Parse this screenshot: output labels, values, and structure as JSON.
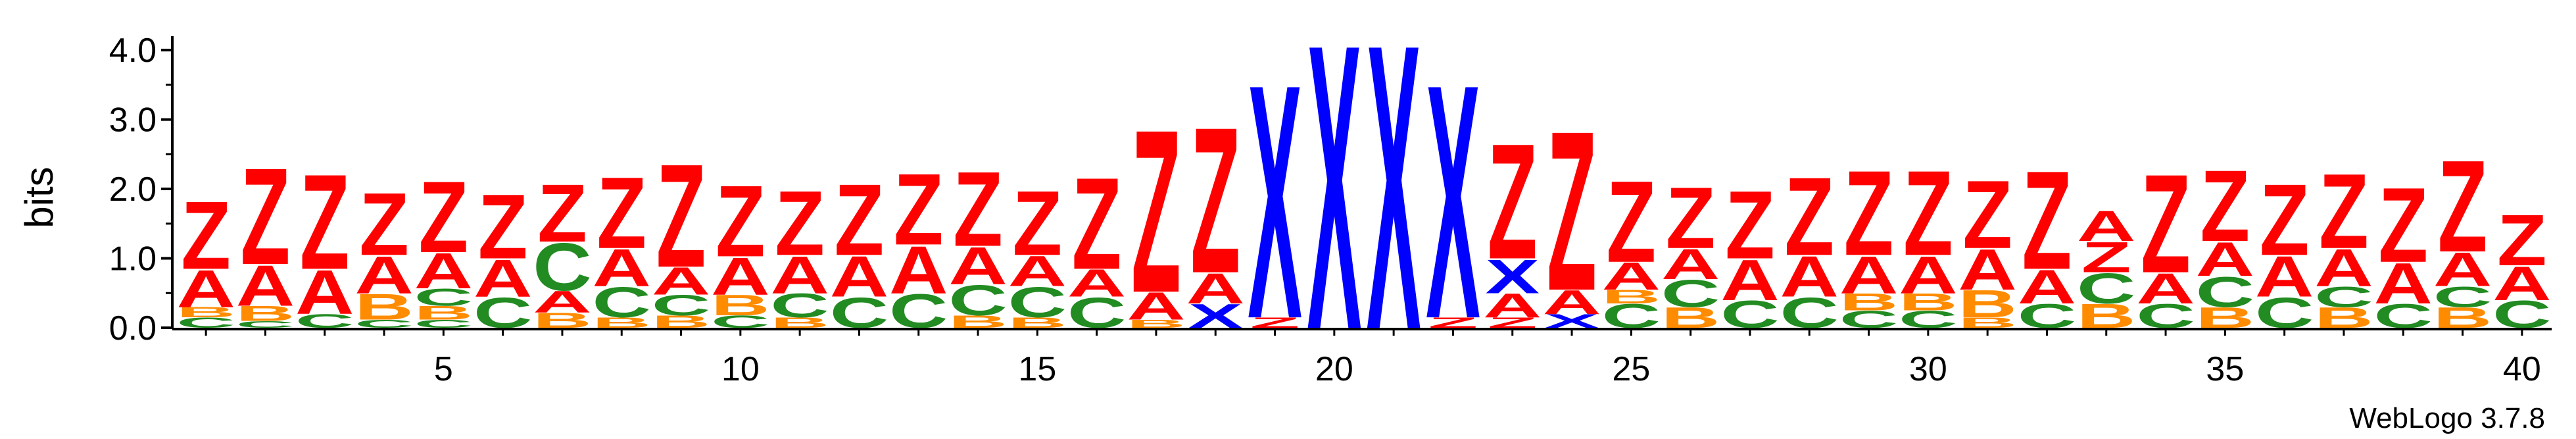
{
  "chart_data": {
    "type": "sequence-logo",
    "ylabel": "bits",
    "xlabel": "",
    "ylim": [
      0,
      4.2
    ],
    "y_ticks": [
      "0.0",
      "1.0",
      "2.0",
      "3.0",
      "4.0"
    ],
    "x_ticks": [
      "5",
      "10",
      "15",
      "20",
      "25",
      "30",
      "35",
      "40"
    ],
    "x_tick_positions": [
      5,
      10,
      15,
      20,
      25,
      30,
      35,
      40
    ],
    "positions": 40,
    "colors": {
      "Z": "#ff0000",
      "A": "#ff0000",
      "X": "#0000ff",
      "B": "#ff8c00",
      "C": "#228b22"
    },
    "stacks": [
      [
        [
          "C",
          0.15
        ],
        [
          "B",
          0.15
        ],
        [
          "A",
          0.55
        ],
        [
          "Z",
          1.0
        ]
      ],
      [
        [
          "C",
          0.1
        ],
        [
          "B",
          0.22
        ],
        [
          "A",
          0.6
        ],
        [
          "Z",
          1.42
        ]
      ],
      [
        [
          "C",
          0.2
        ],
        [
          "A",
          0.65
        ],
        [
          "Z",
          1.4
        ]
      ],
      [
        [
          "C",
          0.12
        ],
        [
          "B",
          0.38
        ],
        [
          "A",
          0.55
        ],
        [
          "Z",
          0.92
        ]
      ],
      [
        [
          "C",
          0.12
        ],
        [
          "B",
          0.2
        ],
        [
          "C",
          0.25
        ],
        [
          "A",
          0.52
        ],
        [
          "Z",
          1.05
        ]
      ],
      [
        [
          "C",
          0.45
        ],
        [
          "A",
          0.55
        ],
        [
          "Z",
          0.95
        ]
      ],
      [
        [
          "B",
          0.22
        ],
        [
          "A",
          0.32
        ],
        [
          "C",
          0.7
        ],
        [
          "Z",
          0.85
        ]
      ],
      [
        [
          "B",
          0.15
        ],
        [
          "C",
          0.45
        ],
        [
          "A",
          0.55
        ],
        [
          "Z",
          1.05
        ]
      ],
      [
        [
          "B",
          0.18
        ],
        [
          "C",
          0.3
        ],
        [
          "A",
          0.4
        ],
        [
          "Z",
          1.52
        ]
      ],
      [
        [
          "C",
          0.18
        ],
        [
          "B",
          0.3
        ],
        [
          "A",
          0.55
        ],
        [
          "Z",
          1.05
        ]
      ],
      [
        [
          "B",
          0.15
        ],
        [
          "C",
          0.35
        ],
        [
          "A",
          0.55
        ],
        [
          "Z",
          0.95
        ]
      ],
      [
        [
          "C",
          0.45
        ],
        [
          "A",
          0.6
        ],
        [
          "Z",
          1.05
        ]
      ],
      [
        [
          "C",
          0.5
        ],
        [
          "A",
          0.7
        ],
        [
          "Z",
          1.05
        ]
      ],
      [
        [
          "B",
          0.18
        ],
        [
          "C",
          0.45
        ],
        [
          "A",
          0.55
        ],
        [
          "Z",
          1.1
        ]
      ],
      [
        [
          "B",
          0.15
        ],
        [
          "C",
          0.45
        ],
        [
          "A",
          0.45
        ],
        [
          "Z",
          0.95
        ]
      ],
      [
        [
          "C",
          0.45
        ],
        [
          "A",
          0.4
        ],
        [
          "Z",
          1.35
        ]
      ],
      [
        [
          "B",
          0.12
        ],
        [
          "A",
          0.4
        ],
        [
          "Z",
          2.4
        ]
      ],
      [
        [
          "X",
          0.35
        ],
        [
          "A",
          0.45
        ],
        [
          "Z",
          2.15
        ]
      ],
      [
        [
          "Z",
          0.15
        ],
        [
          "X",
          3.45
        ]
      ],
      [
        [
          "X",
          4.2
        ]
      ],
      [
        [
          "X",
          4.2
        ]
      ],
      [
        [
          "Z",
          0.15
        ],
        [
          "X",
          3.45
        ]
      ],
      [
        [
          "Z",
          0.15
        ],
        [
          "A",
          0.35
        ],
        [
          "X",
          0.5
        ],
        [
          "Z",
          1.7
        ]
      ],
      [
        [
          "X",
          0.2
        ],
        [
          "A",
          0.35
        ],
        [
          "Z",
          2.35
        ]
      ],
      [
        [
          "C",
          0.35
        ],
        [
          "B",
          0.2
        ],
        [
          "A",
          0.4
        ],
        [
          "Z",
          1.2
        ]
      ],
      [
        [
          "B",
          0.3
        ],
        [
          "C",
          0.4
        ],
        [
          "A",
          0.45
        ],
        [
          "Z",
          0.9
        ]
      ],
      [
        [
          "C",
          0.4
        ],
        [
          "A",
          0.6
        ],
        [
          "Z",
          1.0
        ]
      ],
      [
        [
          "C",
          0.45
        ],
        [
          "A",
          0.6
        ],
        [
          "Z",
          1.15
        ]
      ],
      [
        [
          "C",
          0.25
        ],
        [
          "B",
          0.25
        ],
        [
          "A",
          0.55
        ],
        [
          "Z",
          1.25
        ]
      ],
      [
        [
          "C",
          0.25
        ],
        [
          "B",
          0.25
        ],
        [
          "A",
          0.55
        ],
        [
          "Z",
          1.25
        ]
      ],
      [
        [
          "B",
          0.15
        ],
        [
          "B",
          0.4
        ],
        [
          "A",
          0.6
        ],
        [
          "Z",
          1.0
        ]
      ],
      [
        [
          "C",
          0.35
        ],
        [
          "A",
          0.5
        ],
        [
          "Z",
          1.45
        ]
      ],
      [
        [
          "B",
          0.35
        ],
        [
          "C",
          0.45
        ],
        [
          "Z",
          0.45
        ],
        [
          "A",
          0.45
        ]
      ],
      [
        [
          "C",
          0.35
        ],
        [
          "A",
          0.45
        ],
        [
          "Z",
          1.45
        ]
      ],
      [
        [
          "B",
          0.3
        ],
        [
          "C",
          0.45
        ],
        [
          "A",
          0.5
        ],
        [
          "Z",
          1.05
        ]
      ],
      [
        [
          "C",
          0.45
        ],
        [
          "A",
          0.6
        ],
        [
          "Z",
          1.05
        ]
      ],
      [
        [
          "B",
          0.3
        ],
        [
          "C",
          0.3
        ],
        [
          "A",
          0.55
        ],
        [
          "Z",
          1.1
        ]
      ],
      [
        [
          "C",
          0.35
        ],
        [
          "A",
          0.6
        ],
        [
          "Z",
          1.1
        ]
      ],
      [
        [
          "B",
          0.3
        ],
        [
          "C",
          0.3
        ],
        [
          "A",
          0.5
        ],
        [
          "Z",
          1.35
        ]
      ],
      [
        [
          "C",
          0.4
        ],
        [
          "A",
          0.5
        ],
        [
          "Z",
          0.75
        ]
      ]
    ]
  },
  "footer": {
    "credit": "WebLogo 3.7.8"
  }
}
